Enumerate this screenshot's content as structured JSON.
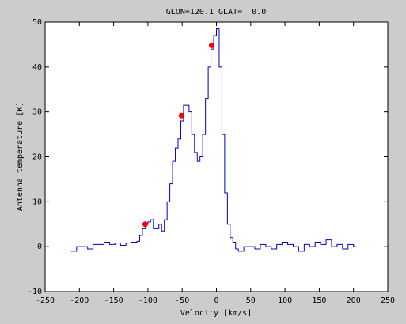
{
  "chart_data": {
    "type": "line",
    "title": "GLON=120.1 GLAT=  0.0",
    "x_label": "Velocity [km/s]",
    "y_label": "Antenna temperature [K]",
    "drawstyle": "steps",
    "xlim": [
      -250,
      250
    ],
    "xticks": [
      -250,
      -200,
      -150,
      -100,
      -50,
      0,
      50,
      100,
      150,
      200,
      250
    ],
    "ylim": [
      -10,
      50
    ],
    "yticks": [
      -10,
      0,
      10,
      20,
      30,
      40,
      50
    ],
    "series": [
      {
        "color": "#0000cc",
        "x": [
          -212,
          -204,
          -196,
          -188,
          -180,
          -172,
          -164,
          -156,
          -148,
          -140,
          -132,
          -124,
          -116,
          -112,
          -108,
          -104,
          -100,
          -96,
          -92,
          -88,
          -84,
          -80,
          -76,
          -72,
          -68,
          -64,
          -60,
          -56,
          -52,
          -48,
          -44,
          -40,
          -36,
          -32,
          -28,
          -24,
          -20,
          -16,
          -12,
          -8,
          -4,
          0,
          4,
          8,
          12,
          16,
          20,
          24,
          28,
          32,
          40,
          48,
          56,
          64,
          72,
          80,
          88,
          96,
          104,
          112,
          120,
          128,
          136,
          144,
          152,
          160,
          168,
          176,
          184,
          192,
          200,
          204
        ],
        "values": [
          -1,
          0,
          0,
          -0.5,
          0.5,
          0.5,
          1,
          0.5,
          0.8,
          0.3,
          0.8,
          1,
          1.2,
          2.5,
          4,
          5,
          5.5,
          6,
          4,
          4,
          5,
          3.5,
          6,
          10,
          14,
          19,
          22,
          24,
          28,
          31.5,
          31.5,
          30,
          25,
          21,
          19,
          20,
          25,
          33,
          40,
          44,
          47,
          48.5,
          40,
          25,
          12,
          5,
          2,
          1,
          -0.5,
          -1,
          0,
          0,
          -0.5,
          0.5,
          0,
          -0.5,
          0.5,
          1,
          0.5,
          0,
          -1,
          0.5,
          0,
          1,
          0.5,
          1.5,
          0,
          0.5,
          -0.5,
          0.5,
          0,
          0
        ]
      },
      {
        "type": "scatter",
        "color": "#ff0000",
        "x": [
          -104,
          -51,
          -7
        ],
        "values": [
          5,
          29.2,
          44.8
        ]
      }
    ]
  }
}
